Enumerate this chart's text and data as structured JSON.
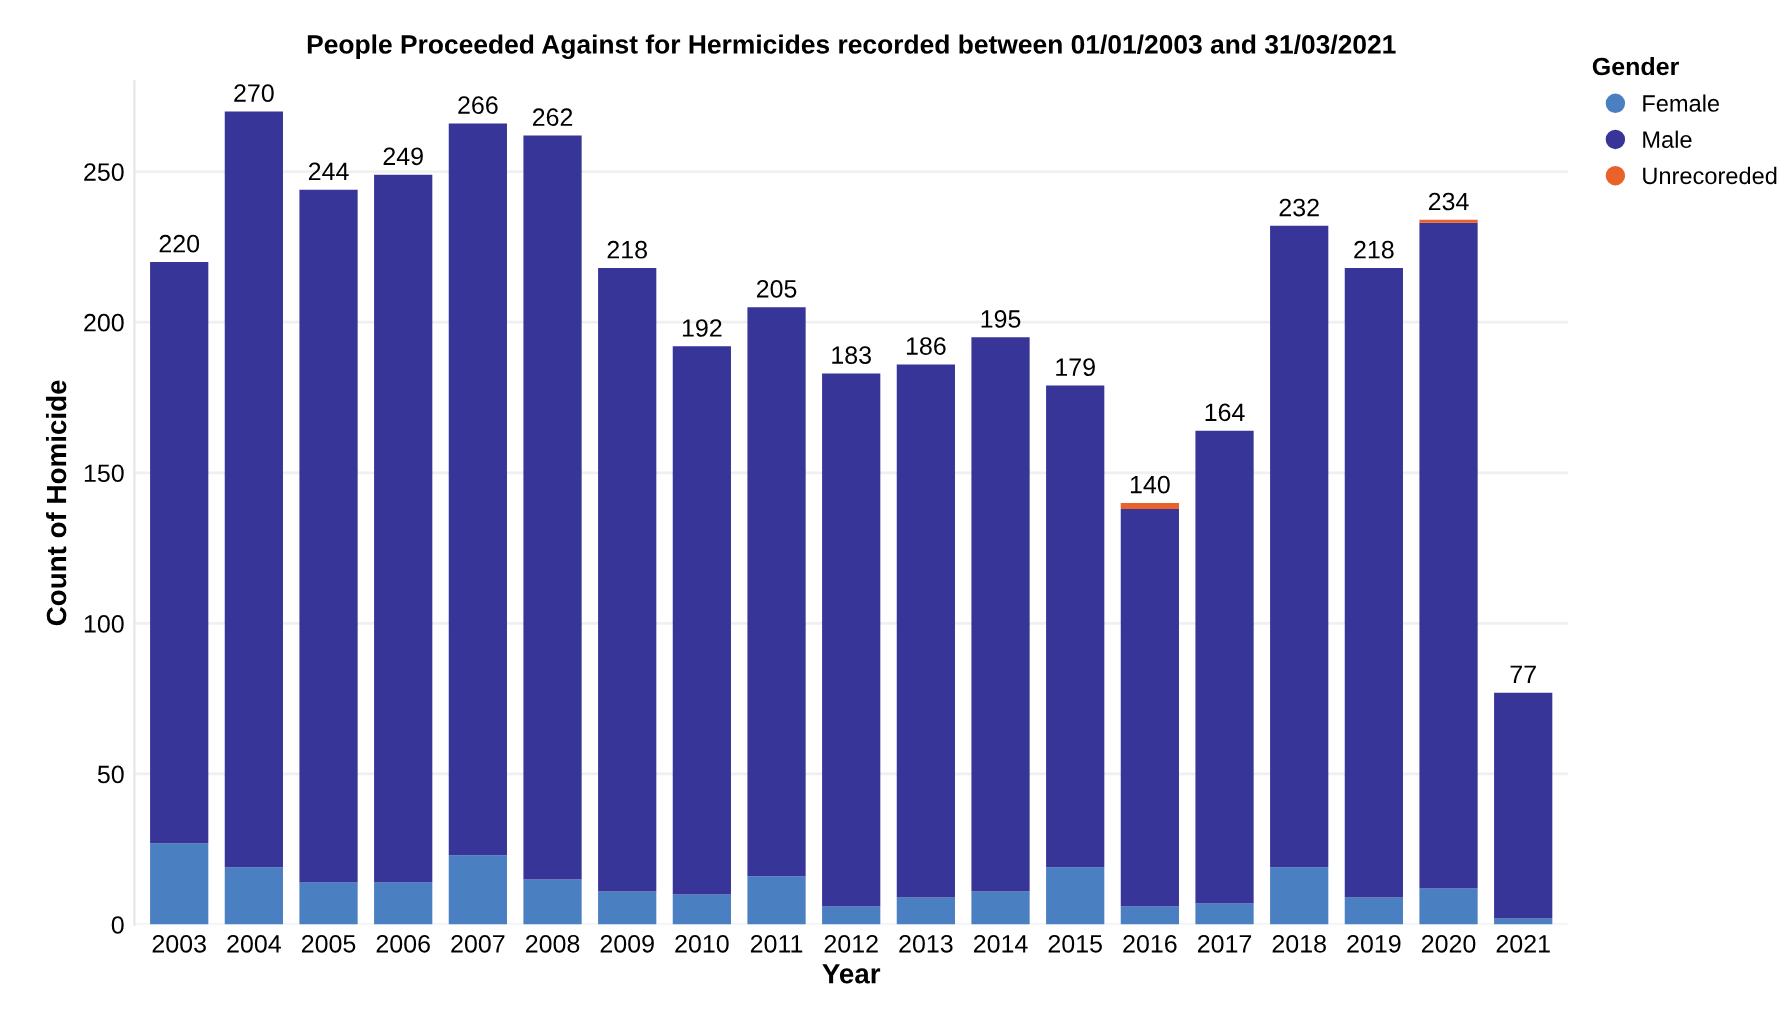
{
  "chart_data": {
    "type": "bar",
    "title": "People Proceeded Against for Hermicides recorded between 01/01/2003 and 31/03/2021",
    "xlabel": "Year",
    "ylabel": "Count of Homicide",
    "legend_title": "Gender",
    "categories": [
      "2003",
      "2004",
      "2005",
      "2006",
      "2007",
      "2008",
      "2009",
      "2010",
      "2011",
      "2012",
      "2013",
      "2014",
      "2015",
      "2016",
      "2017",
      "2018",
      "2019",
      "2020",
      "2021"
    ],
    "stacked": true,
    "series": [
      {
        "name": "Female",
        "color": "#4a7fc1",
        "values": [
          27,
          19,
          14,
          14,
          23,
          15,
          11,
          10,
          16,
          6,
          9,
          11,
          19,
          6,
          7,
          19,
          9,
          12,
          2
        ]
      },
      {
        "name": "Male",
        "color": "#373597",
        "values": [
          193,
          251,
          230,
          235,
          243,
          247,
          207,
          182,
          189,
          177,
          177,
          184,
          160,
          132,
          157,
          213,
          209,
          221,
          75
        ]
      },
      {
        "name": "Unrecoreded",
        "color": "#e8622a",
        "values": [
          0,
          0,
          0,
          0,
          0,
          0,
          0,
          0,
          0,
          0,
          0,
          0,
          0,
          2,
          0,
          0,
          0,
          1,
          0
        ]
      }
    ],
    "totals": [
      "220",
      "270",
      "244",
      "249",
      "266",
      "262",
      "218",
      "192",
      "205",
      "183",
      "186",
      "195",
      "179",
      "140",
      "164",
      "232",
      "218",
      "234",
      "77"
    ],
    "ylim": [
      0,
      280
    ],
    "yticks": [
      0,
      50,
      100,
      150,
      200,
      250
    ],
    "grid": "y",
    "legend": "top right"
  }
}
